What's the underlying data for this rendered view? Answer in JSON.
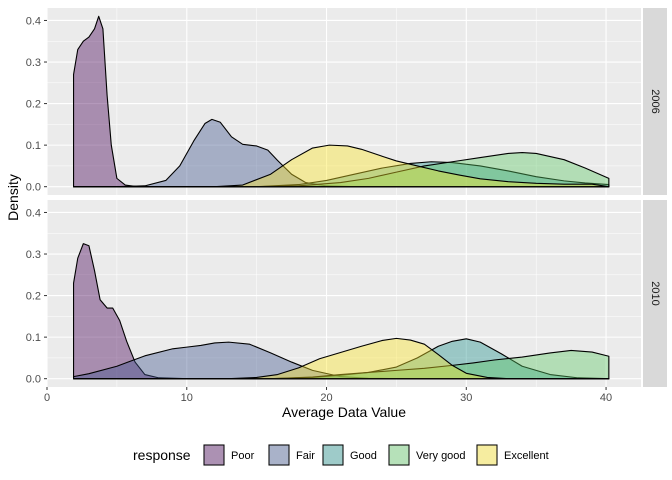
{
  "chart_data": {
    "type": "area",
    "subtype": "density",
    "xlabel": "Average Data Value",
    "ylabel": "Density",
    "xlim": [
      0,
      42.5
    ],
    "ylim": [
      -0.02,
      0.43
    ],
    "x_ticks": [
      0,
      10,
      20,
      30,
      40
    ],
    "y_ticks": [
      0.0,
      0.1,
      0.2,
      0.3,
      0.4
    ],
    "y_tick_labels": [
      "0.0",
      "0.1",
      "0.2",
      "0.3",
      "0.4"
    ],
    "facet_by": "year",
    "legend": {
      "title": "response",
      "position": "bottom",
      "entries": [
        {
          "label": "Poor",
          "color": "#440154"
        },
        {
          "label": "Fair",
          "color": "#3B528B"
        },
        {
          "label": "Good",
          "color": "#21908C"
        },
        {
          "label": "Very good",
          "color": "#5DC863"
        },
        {
          "label": "Excellent",
          "color": "#FDE725"
        }
      ]
    },
    "fill_alpha": 0.4,
    "grid": true,
    "panels": [
      {
        "label": "2006",
        "series": [
          {
            "name": "Poor",
            "points": [
              [
                1.9,
                0.27
              ],
              [
                2.2,
                0.33
              ],
              [
                2.6,
                0.35
              ],
              [
                3.0,
                0.36
              ],
              [
                3.4,
                0.38
              ],
              [
                3.7,
                0.41
              ],
              [
                4.0,
                0.38
              ],
              [
                4.3,
                0.22
              ],
              [
                4.6,
                0.1
              ],
              [
                5.0,
                0.02
              ],
              [
                5.6,
                0.004
              ],
              [
                6.5,
                0.0
              ],
              [
                10,
                0.0
              ],
              [
                40.2,
                0.0
              ]
            ]
          },
          {
            "name": "Fair",
            "points": [
              [
                1.9,
                0.0
              ],
              [
                5,
                0.0
              ],
              [
                7,
                0.002
              ],
              [
                8.5,
                0.015
              ],
              [
                9.5,
                0.05
              ],
              [
                10.5,
                0.11
              ],
              [
                11.3,
                0.152
              ],
              [
                11.8,
                0.162
              ],
              [
                12.4,
                0.155
              ],
              [
                13.2,
                0.12
              ],
              [
                14.0,
                0.102
              ],
              [
                15.0,
                0.098
              ],
              [
                15.8,
                0.088
              ],
              [
                16.5,
                0.063
              ],
              [
                17.5,
                0.03
              ],
              [
                18.5,
                0.01
              ],
              [
                20,
                0.002
              ],
              [
                22,
                0.0
              ],
              [
                40.2,
                0.0
              ]
            ]
          },
          {
            "name": "Good",
            "points": [
              [
                1.9,
                0.0
              ],
              [
                15,
                0.0
              ],
              [
                18,
                0.005
              ],
              [
                20,
                0.015
              ],
              [
                22,
                0.03
              ],
              [
                24,
                0.045
              ],
              [
                26,
                0.056
              ],
              [
                27.5,
                0.06
              ],
              [
                29,
                0.058
              ],
              [
                31,
                0.05
              ],
              [
                33,
                0.038
              ],
              [
                35,
                0.024
              ],
              [
                37,
                0.014
              ],
              [
                38.5,
                0.009
              ],
              [
                40.2,
                0.005
              ]
            ]
          },
          {
            "name": "Very good",
            "points": [
              [
                1.9,
                0.0
              ],
              [
                15,
                0.0
              ],
              [
                18,
                0.002
              ],
              [
                21,
                0.01
              ],
              [
                23,
                0.02
              ],
              [
                25,
                0.035
              ],
              [
                27,
                0.05
              ],
              [
                29,
                0.06
              ],
              [
                31,
                0.07
              ],
              [
                33,
                0.08
              ],
              [
                34,
                0.082
              ],
              [
                35,
                0.08
              ],
              [
                37,
                0.065
              ],
              [
                38.5,
                0.045
              ],
              [
                40.2,
                0.02
              ]
            ]
          },
          {
            "name": "Excellent",
            "points": [
              [
                1.9,
                0.0
              ],
              [
                12,
                0.0
              ],
              [
                14,
                0.004
              ],
              [
                16,
                0.03
              ],
              [
                17.5,
                0.065
              ],
              [
                19,
                0.093
              ],
              [
                20.2,
                0.1
              ],
              [
                21.5,
                0.098
              ],
              [
                22.5,
                0.09
              ],
              [
                24,
                0.073
              ],
              [
                25,
                0.062
              ],
              [
                26.5,
                0.05
              ],
              [
                28,
                0.038
              ],
              [
                29.5,
                0.028
              ],
              [
                31,
                0.019
              ],
              [
                33,
                0.012
              ],
              [
                35,
                0.008
              ],
              [
                37,
                0.006
              ],
              [
                39,
                0.006
              ],
              [
                40.2,
                0.0
              ]
            ]
          }
        ]
      },
      {
        "label": "2010",
        "series": [
          {
            "name": "Poor",
            "points": [
              [
                1.9,
                0.23
              ],
              [
                2.2,
                0.29
              ],
              [
                2.6,
                0.325
              ],
              [
                3.0,
                0.32
              ],
              [
                3.4,
                0.26
              ],
              [
                3.8,
                0.19
              ],
              [
                4.3,
                0.17
              ],
              [
                4.7,
                0.17
              ],
              [
                5.2,
                0.14
              ],
              [
                5.7,
                0.09
              ],
              [
                6.3,
                0.04
              ],
              [
                7.0,
                0.01
              ],
              [
                8,
                0.002
              ],
              [
                10,
                0.0
              ],
              [
                40.2,
                0.0
              ]
            ]
          },
          {
            "name": "Fair",
            "points": [
              [
                1.9,
                0.005
              ],
              [
                3,
                0.012
              ],
              [
                5,
                0.03
              ],
              [
                7,
                0.055
              ],
              [
                9,
                0.072
              ],
              [
                10,
                0.076
              ],
              [
                11,
                0.08
              ],
              [
                12,
                0.086
              ],
              [
                13,
                0.088
              ],
              [
                14.5,
                0.083
              ],
              [
                16,
                0.062
              ],
              [
                17.5,
                0.04
              ],
              [
                19,
                0.02
              ],
              [
                21,
                0.005
              ],
              [
                23,
                0.001
              ],
              [
                25,
                0.0
              ],
              [
                40.2,
                0.0
              ]
            ]
          },
          {
            "name": "Good",
            "points": [
              [
                1.9,
                0.0
              ],
              [
                16,
                0.0
              ],
              [
                19,
                0.003
              ],
              [
                21,
                0.008
              ],
              [
                23,
                0.015
              ],
              [
                25,
                0.028
              ],
              [
                26.5,
                0.05
              ],
              [
                28,
                0.078
              ],
              [
                29,
                0.09
              ],
              [
                30,
                0.096
              ],
              [
                31,
                0.088
              ],
              [
                32.5,
                0.06
              ],
              [
                34,
                0.03
              ],
              [
                36,
                0.01
              ],
              [
                38,
                0.002
              ],
              [
                40.2,
                0.0
              ]
            ]
          },
          {
            "name": "Very good",
            "points": [
              [
                1.9,
                0.0
              ],
              [
                16,
                0.0
              ],
              [
                19,
                0.004
              ],
              [
                21,
                0.01
              ],
              [
                23,
                0.015
              ],
              [
                25,
                0.02
              ],
              [
                27,
                0.025
              ],
              [
                29,
                0.032
              ],
              [
                30.5,
                0.038
              ],
              [
                32,
                0.045
              ],
              [
                34,
                0.052
              ],
              [
                36,
                0.062
              ],
              [
                37.5,
                0.068
              ],
              [
                39,
                0.064
              ],
              [
                40.2,
                0.054
              ]
            ]
          },
          {
            "name": "Excellent",
            "points": [
              [
                1.9,
                0.0
              ],
              [
                13,
                0.0
              ],
              [
                15,
                0.003
              ],
              [
                16.5,
                0.01
              ],
              [
                18,
                0.026
              ],
              [
                19.5,
                0.048
              ],
              [
                21,
                0.063
              ],
              [
                22.5,
                0.078
              ],
              [
                24,
                0.092
              ],
              [
                25,
                0.097
              ],
              [
                26,
                0.093
              ],
              [
                27,
                0.083
              ],
              [
                28,
                0.058
              ],
              [
                29,
                0.032
              ],
              [
                30,
                0.013
              ],
              [
                31.5,
                0.003
              ],
              [
                33,
                0.0
              ],
              [
                40.2,
                0.0
              ]
            ]
          }
        ]
      }
    ]
  }
}
